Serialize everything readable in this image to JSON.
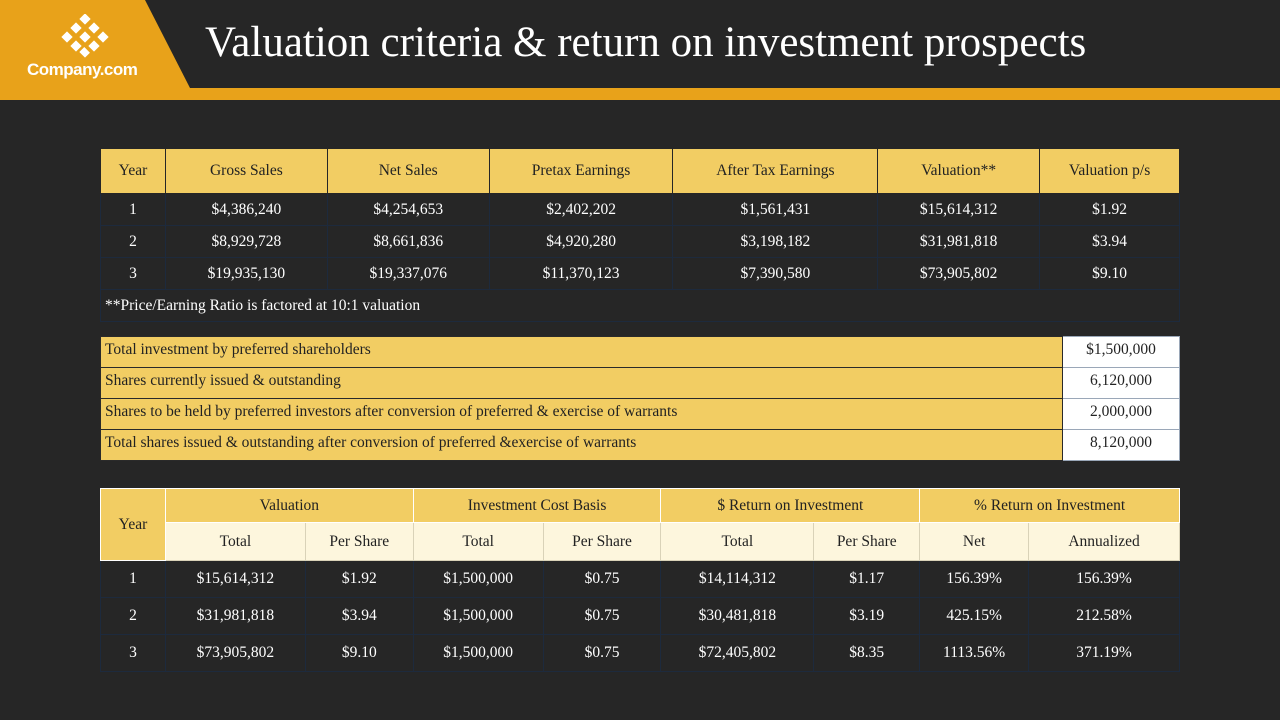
{
  "brand": {
    "name": "Company.com",
    "logo_icon": "diamond-lattice-icon",
    "accent": "#E8A21A"
  },
  "title": "Valuation criteria & return on investment prospects",
  "projections": {
    "headers": [
      "Year",
      "Gross Sales",
      "Net Sales",
      "Pretax Earnings",
      "After Tax Earnings",
      "Valuation**",
      "Valuation p/s"
    ],
    "rows": [
      [
        "1",
        "$4,386,240",
        "$4,254,653",
        "$2,402,202",
        "$1,561,431",
        "$15,614,312",
        "$1.92"
      ],
      [
        "2",
        "$8,929,728",
        "$8,661,836",
        "$4,920,280",
        "$3,198,182",
        "$31,981,818",
        "$3.94"
      ],
      [
        "3",
        "$19,935,130",
        "$19,337,076",
        "$11,370,123",
        "$7,390,580",
        "$73,905,802",
        "$9.10"
      ]
    ],
    "note": "**Price/Earning  Ratio is factored at 10:1 valuation"
  },
  "shares": [
    {
      "label": "Total investment by preferred shareholders",
      "value": "$1,500,000"
    },
    {
      "label": "Shares currently issued & outstanding",
      "value": "6,120,000"
    },
    {
      "label": "Shares to be held by preferred investors after conversion of preferred & exercise of warrants",
      "value": "2,000,000"
    },
    {
      "label": "Total shares issued & outstanding after conversion of preferred &exercise of warrants",
      "value": "8,120,000"
    }
  ],
  "returns": {
    "year_header": "Year",
    "groups": [
      {
        "label": "Valuation",
        "subs": [
          "Total",
          "Per Share"
        ]
      },
      {
        "label": "Investment Cost Basis",
        "subs": [
          "Total",
          "Per Share"
        ]
      },
      {
        "label": "$ Return on Investment",
        "subs": [
          "Total",
          "Per Share"
        ]
      },
      {
        "label": "% Return on Investment",
        "subs": [
          "Net",
          "Annualized"
        ]
      }
    ],
    "rows": [
      [
        "1",
        "$15,614,312",
        "$1.92",
        "$1,500,000",
        "$0.75",
        "$14,114,312",
        "$1.17",
        "156.39%",
        "156.39%"
      ],
      [
        "2",
        "$31,981,818",
        "$3.94",
        "$1,500,000",
        "$0.75",
        "$30,481,818",
        "$3.19",
        "425.15%",
        "212.58%"
      ],
      [
        "3",
        "$73,905,802",
        "$9.10",
        "$1,500,000",
        "$0.75",
        "$72,405,802",
        "$8.35",
        "1113.56%",
        "371.19%"
      ]
    ]
  }
}
